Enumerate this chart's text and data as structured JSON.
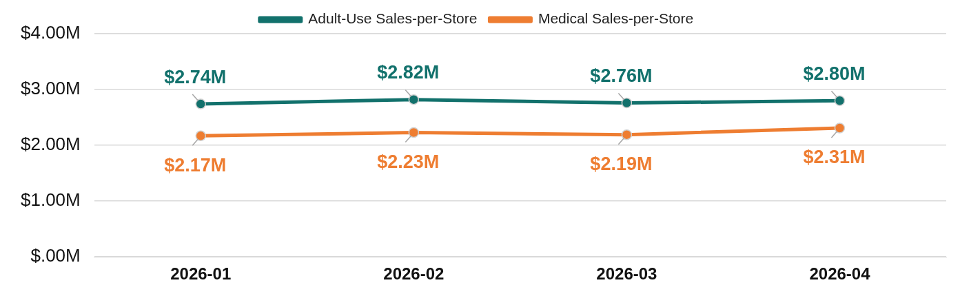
{
  "chart_data": {
    "type": "line",
    "categories": [
      "2026-01",
      "2026-02",
      "2026-03",
      "2026-04"
    ],
    "series": [
      {
        "name": "Adult-Use Sales-per-Store",
        "color": "#12716c",
        "values": [
          2.74,
          2.82,
          2.76,
          2.8
        ],
        "value_labels": [
          "$2.74M",
          "$2.82M",
          "$2.76M",
          "$2.80M"
        ]
      },
      {
        "name": "Medical Sales-per-Store",
        "color": "#ee7d31",
        "values": [
          2.17,
          2.23,
          2.19,
          2.31
        ],
        "value_labels": [
          "$2.17M",
          "$2.23M",
          "$2.19M",
          "$2.31M"
        ]
      }
    ],
    "ylim": [
      0,
      4
    ],
    "yticks": [
      {
        "value": 0,
        "label": "$.00M"
      },
      {
        "value": 1,
        "label": "$1.00M"
      },
      {
        "value": 2,
        "label": "$2.00M"
      },
      {
        "value": 3,
        "label": "$3.00M"
      },
      {
        "value": 4,
        "label": "$4.00M"
      }
    ],
    "grid": "y",
    "legend": "top",
    "marker": "circle"
  }
}
